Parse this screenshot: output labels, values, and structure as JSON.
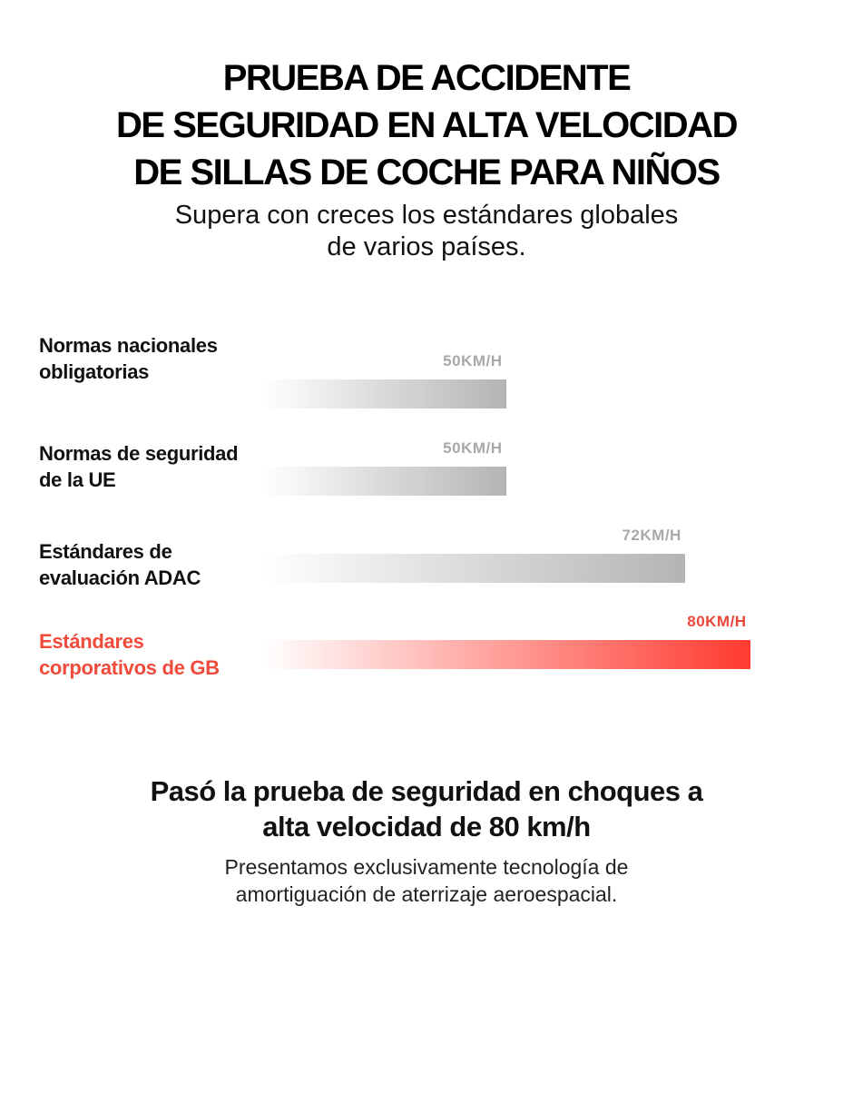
{
  "header": {
    "title_lines": [
      "PRUEBA DE ACCIDENTE",
      "DE SEGURIDAD EN ALTA VELOCIDAD",
      "DE SILLAS DE COCHE PARA NIÑOS"
    ],
    "subtitle_lines": [
      "Supera con creces los estándares globales",
      "de varios países."
    ]
  },
  "chart_data": {
    "type": "bar",
    "orientation": "horizontal",
    "categories": [
      "Normas nacionales obligatorias",
      "Normas de seguridad de la UE",
      "Estándares de evaluación ADAC",
      "Estándares corporativos de GB"
    ],
    "values": [
      50,
      50,
      72,
      80
    ],
    "value_labels": [
      "50KM/H",
      "50KM/H",
      "72KM/H",
      "80KM/H"
    ],
    "colors": [
      "#b4b4b4",
      "#b4b4b4",
      "#b4b4b4",
      "#ff3a2f"
    ],
    "label_colors": [
      "#111111",
      "#111111",
      "#111111",
      "#ef4a3a"
    ],
    "value_label_colors": [
      "#a8a8a8",
      "#a8a8a8",
      "#a8a8a8",
      "#e8483a"
    ]
  },
  "footer": {
    "heading_lines": [
      "Pasó la prueba de seguridad en choques a",
      "alta velocidad de 80 km/h"
    ],
    "text_lines": [
      "Presentamos exclusivamente tecnología de",
      "amortiguación de aterrizaje aeroespacial."
    ]
  }
}
